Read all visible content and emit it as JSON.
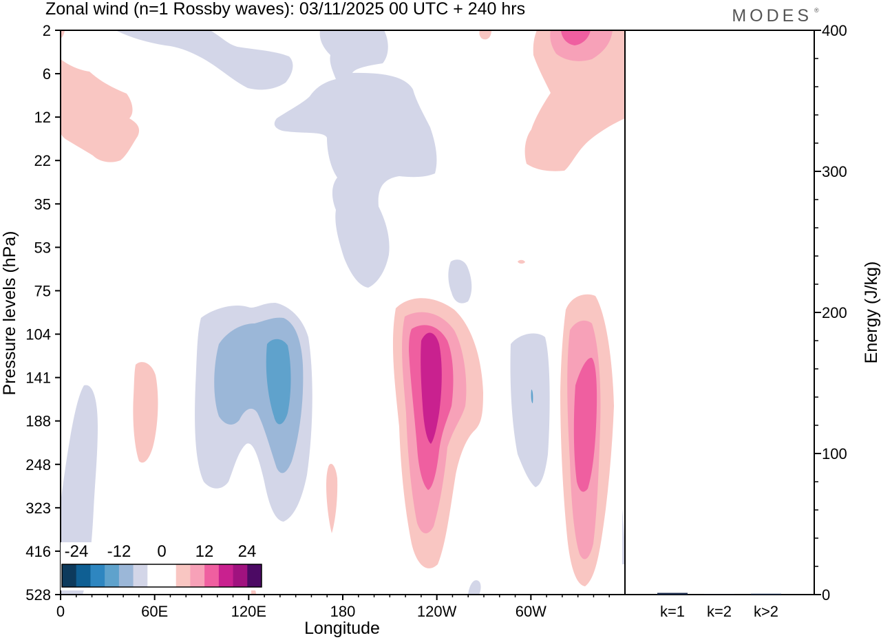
{
  "chart_data": [
    {
      "type": "heatmap",
      "title": "Zonal wind (n=1 Rossby waves):  03/11/2025  00 UTC  + 240 hrs",
      "xlabel": "Longitude",
      "ylabel": "Pressure levels (hPa)",
      "x_ticks": [
        "0",
        "60E",
        "120E",
        "180",
        "120W",
        "60W"
      ],
      "y_ticks": [
        "2",
        "6",
        "12",
        "22",
        "35",
        "53",
        "75",
        "104",
        "141",
        "188",
        "248",
        "323",
        "416",
        "528"
      ],
      "colorbar": {
        "labels": [
          "-24",
          "-12",
          "0",
          "12",
          "24"
        ],
        "colors": [
          "#0d3a5c",
          "#0f5f93",
          "#2e86c0",
          "#5fa2cc",
          "#9bb7d8",
          "#d3d6e8",
          "#ffffff",
          "#ffffff",
          "#f9c6c2",
          "#f7a1b8",
          "#ef5fa0",
          "#c9218f",
          "#a0127f",
          "#4c0a64"
        ]
      }
    },
    {
      "type": "bar",
      "categories": [
        "k=1",
        "k=2",
        "k>2"
      ],
      "values": [
        1.2,
        0.2,
        0.6
      ],
      "ylabel": "Energy (J/kg)",
      "ylim": [
        0,
        400
      ],
      "y_ticks": [
        "0",
        "100",
        "200",
        "300",
        "400"
      ]
    }
  ],
  "logo": "MODES"
}
